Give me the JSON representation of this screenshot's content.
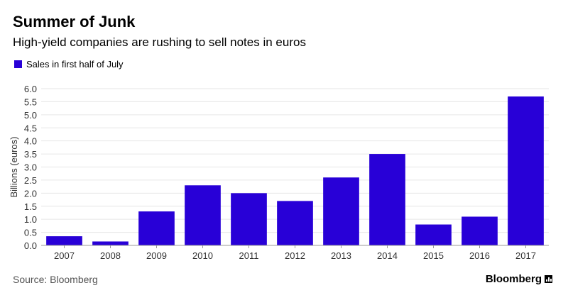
{
  "header": {
    "title": "Summer of Junk",
    "subtitle": "High-yield companies are rushing to sell notes in euros"
  },
  "legend": {
    "label": "Sales in first half of July"
  },
  "footer": {
    "source": "Source: Bloomberg",
    "brand": "Bloomberg"
  },
  "colors": {
    "bar": "#2800d7",
    "grid": "#e6e6e6",
    "axis": "#999999"
  },
  "chart_data": {
    "type": "bar",
    "title": "Summer of Junk",
    "subtitle": "High-yield companies are rushing to sell notes in euros",
    "ylabel": "Billions (euros)",
    "xlabel": "",
    "categories": [
      "2007",
      "2008",
      "2009",
      "2010",
      "2011",
      "2012",
      "2013",
      "2014",
      "2015",
      "2016",
      "2017"
    ],
    "series": [
      {
        "name": "Sales in first half of July",
        "values": [
          0.35,
          0.15,
          1.3,
          2.3,
          2.0,
          1.7,
          2.6,
          3.5,
          0.8,
          1.1,
          5.7
        ]
      }
    ],
    "ylim": [
      0,
      6.0
    ],
    "yticks": [
      "0.0",
      "0.5",
      "1.0",
      "1.5",
      "2.0",
      "2.5",
      "3.0",
      "3.5",
      "4.0",
      "4.5",
      "5.0",
      "5.5",
      "6.0"
    ],
    "grid": true,
    "legend_position": "top-left"
  }
}
